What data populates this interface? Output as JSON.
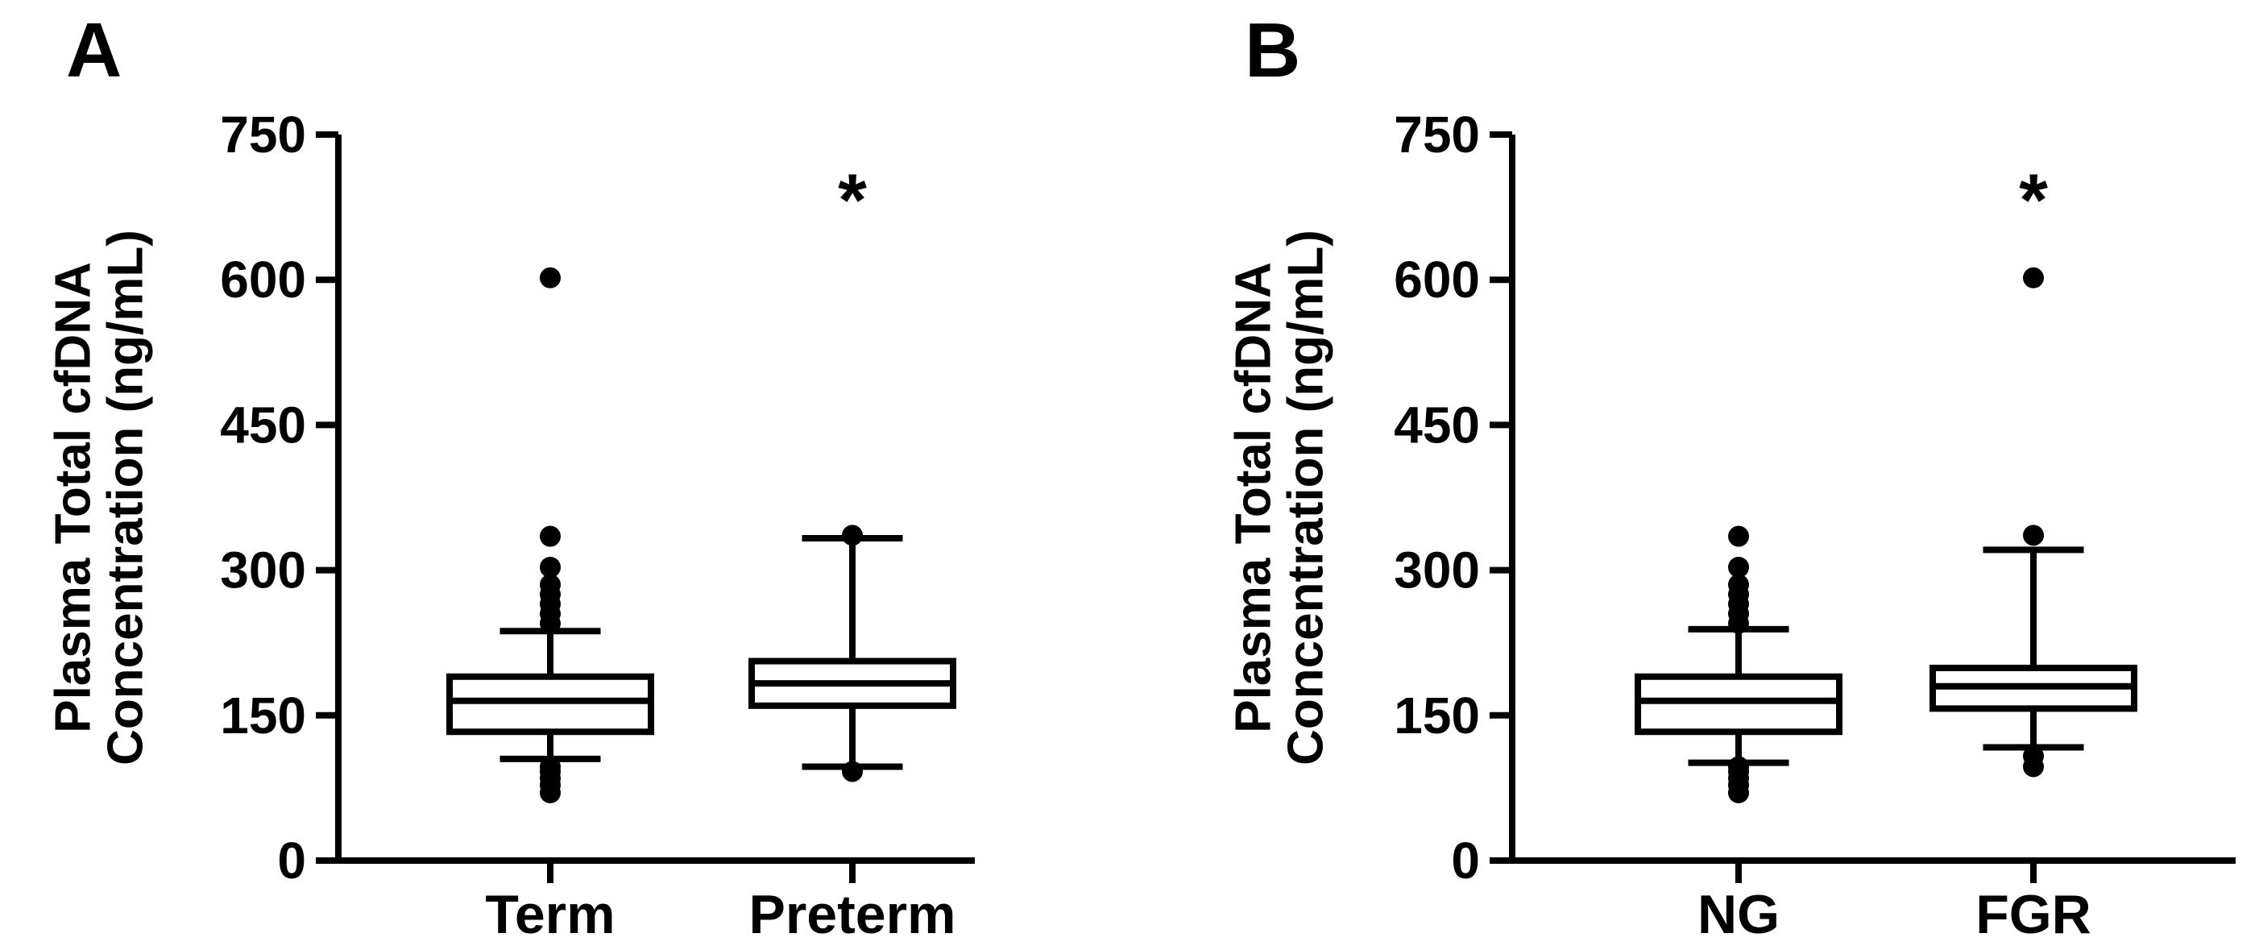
{
  "chart_data": [
    {
      "type": "box",
      "panel_label": "A",
      "ylabel_line1": "Plasma Total cfDNA",
      "ylabel_line2": "Concentration (ng/mL)",
      "ylim": [
        0,
        750
      ],
      "yticks": [
        0,
        150,
        300,
        450,
        600,
        750
      ],
      "categories": [
        "Term",
        "Preterm"
      ],
      "boxes": [
        {
          "category": "Term",
          "whisker_low": 105,
          "q1": 133,
          "median": 165,
          "q3": 190,
          "whisker_high": 237,
          "outliers": [
            70,
            78,
            85,
            92,
            97,
            245,
            255,
            265,
            275,
            285,
            303,
            335,
            602
          ],
          "significance": ""
        },
        {
          "category": "Preterm",
          "whisker_low": 97,
          "q1": 160,
          "median": 183,
          "q3": 206,
          "whisker_high": 333,
          "outliers": [
            92,
            336
          ],
          "significance": "*"
        }
      ]
    },
    {
      "type": "box",
      "panel_label": "B",
      "ylabel_line1": "Plasma Total cfDNA",
      "ylabel_line2": "Concentration (ng/mL)",
      "ylim": [
        0,
        750
      ],
      "yticks": [
        0,
        150,
        300,
        450,
        600,
        750
      ],
      "categories": [
        "NG",
        "FGR"
      ],
      "boxes": [
        {
          "category": "NG",
          "whisker_low": 101,
          "q1": 133,
          "median": 165,
          "q3": 190,
          "whisker_high": 239,
          "outliers": [
            70,
            78,
            85,
            92,
            97,
            245,
            255,
            265,
            275,
            285,
            303,
            335
          ],
          "significance": ""
        },
        {
          "category": "FGR",
          "whisker_low": 117,
          "q1": 157,
          "median": 180,
          "q3": 199,
          "whisker_high": 321,
          "outliers": [
            97,
            108,
            336,
            602
          ],
          "significance": "*"
        }
      ]
    }
  ]
}
